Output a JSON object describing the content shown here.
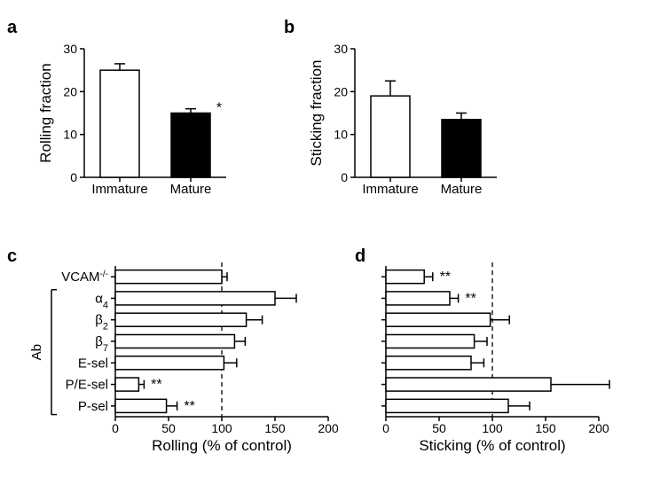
{
  "panel_labels": {
    "a": "a",
    "b": "b",
    "c": "c",
    "d": "d"
  },
  "panel_a": {
    "type": "bar",
    "ylabel": "Rolling fraction",
    "ylim": [
      0,
      30
    ],
    "ytick_step": 10,
    "categories": [
      "Immature",
      "Mature"
    ],
    "values": [
      25,
      15
    ],
    "errors": [
      1.5,
      1.0
    ],
    "bar_colors": [
      "#ffffff",
      "#000000"
    ],
    "bar_outline": "#000000",
    "bar_width": 0.55,
    "sig": [
      "",
      "*"
    ],
    "axis_color": "#000000",
    "background_color": "#ffffff",
    "label_fontsize": 15,
    "tick_fontsize": 14,
    "title_fontsize": 17
  },
  "panel_b": {
    "type": "bar",
    "ylabel": "Sticking fraction",
    "ylim": [
      0,
      30
    ],
    "ytick_step": 10,
    "categories": [
      "Immature",
      "Mature"
    ],
    "values": [
      19,
      13.5
    ],
    "errors": [
      3.5,
      1.5
    ],
    "bar_colors": [
      "#ffffff",
      "#000000"
    ],
    "bar_outline": "#000000",
    "bar_width": 0.55,
    "sig": [
      "",
      ""
    ],
    "axis_color": "#000000",
    "background_color": "#ffffff",
    "label_fontsize": 15,
    "tick_fontsize": 14,
    "title_fontsize": 17
  },
  "panel_c": {
    "type": "horizontal-bar",
    "xlabel": "Rolling (% of control)",
    "xlim": [
      0,
      200
    ],
    "xtick_step": 50,
    "ref_value": 100,
    "categories_top_to_bottom": [
      "VCAM⁻/⁻",
      "α₄",
      "β₂",
      "β₇",
      "E-sel",
      "P/E-sel",
      "P-sel"
    ],
    "row_labels": {
      "0": "VCAM",
      "0_sup": "-/-",
      "1": "α",
      "1_sub": "4",
      "2": "β",
      "2_sub": "2",
      "3": "β",
      "3_sub": "7",
      "4": "E-sel",
      "5": "P/E-sel",
      "6": "P-sel"
    },
    "values": [
      100,
      150,
      123,
      112,
      102,
      22,
      48
    ],
    "errors": [
      5,
      20,
      15,
      10,
      12,
      5,
      10
    ],
    "sig": [
      "",
      "",
      "",
      "",
      "",
      "**",
      "**"
    ],
    "bar_color": "#ffffff",
    "bar_outline": "#000000",
    "axis_color": "#000000",
    "ab_group_label": "Ab",
    "ab_group_range_idx": [
      1,
      6
    ],
    "bar_thickness": 0.62,
    "label_fontsize": 15,
    "tick_fontsize": 14,
    "title_fontsize": 17
  },
  "panel_d": {
    "type": "horizontal-bar",
    "xlabel": "Sticking (% of control)",
    "xlim": [
      0,
      200
    ],
    "xtick_step": 50,
    "ref_value": 100,
    "values": [
      36,
      60,
      98,
      83,
      80,
      155,
      115
    ],
    "errors": [
      8,
      8,
      18,
      12,
      12,
      55,
      20
    ],
    "sig": [
      "**",
      "**",
      "",
      "",
      "",
      "",
      ""
    ],
    "bar_color": "#ffffff",
    "bar_outline": "#000000",
    "axis_color": "#000000",
    "bar_thickness": 0.62,
    "label_fontsize": 15,
    "tick_fontsize": 14,
    "title_fontsize": 17
  },
  "colors": {
    "bg": "#ffffff",
    "axis": "#000000",
    "text": "#000000"
  }
}
